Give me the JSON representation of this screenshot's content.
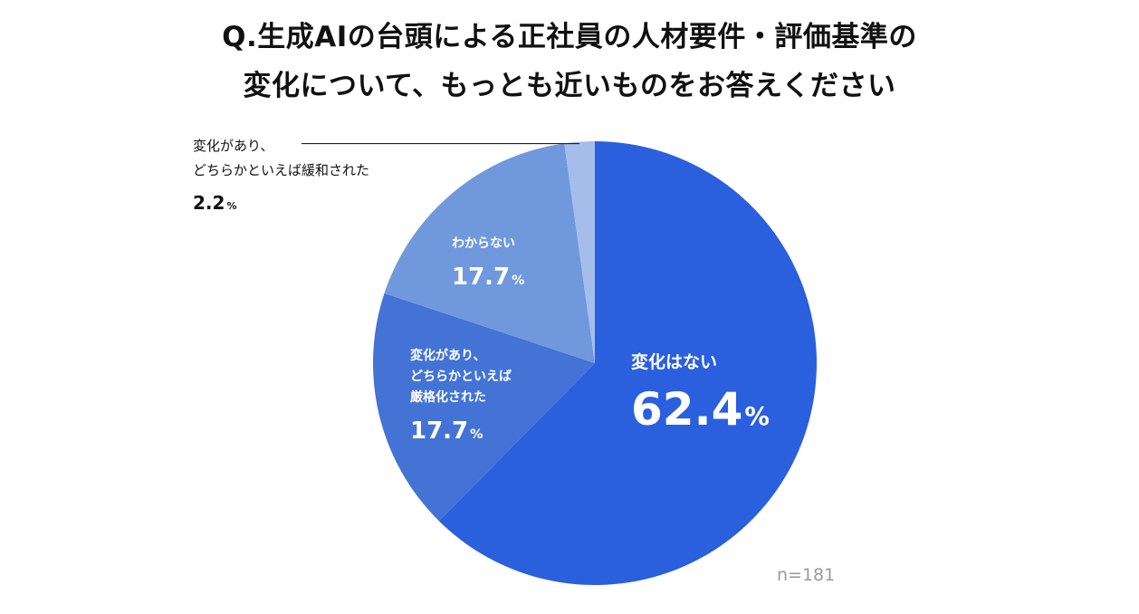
{
  "chart_data": {
    "type": "pie",
    "title": [
      "Q.生成AIの台頭による正社員の人材要件・評価基準の",
      "変化について、もっとも近いものをお答えください"
    ],
    "slices": [
      {
        "name": [
          "変化はない"
        ],
        "value": 62.4,
        "value_label": "62.4",
        "unit": "%",
        "color": "#2a5fde"
      },
      {
        "name": [
          "変化があり、",
          "どちらかといえば",
          "厳格化された"
        ],
        "value": 17.7,
        "value_label": "17.7",
        "unit": "%",
        "color": "#4473d6"
      },
      {
        "name": [
          "わからない"
        ],
        "value": 17.7,
        "value_label": "17.7",
        "unit": "%",
        "color": "#7098dc"
      },
      {
        "name": [
          "変化があり、",
          "どちらかといえば緩和された"
        ],
        "value": 2.2,
        "value_label": "2.2",
        "unit": "%",
        "color": "#a5bdea"
      }
    ],
    "start": "12 o'clock",
    "direction": "clockwise",
    "note": "n=181"
  }
}
